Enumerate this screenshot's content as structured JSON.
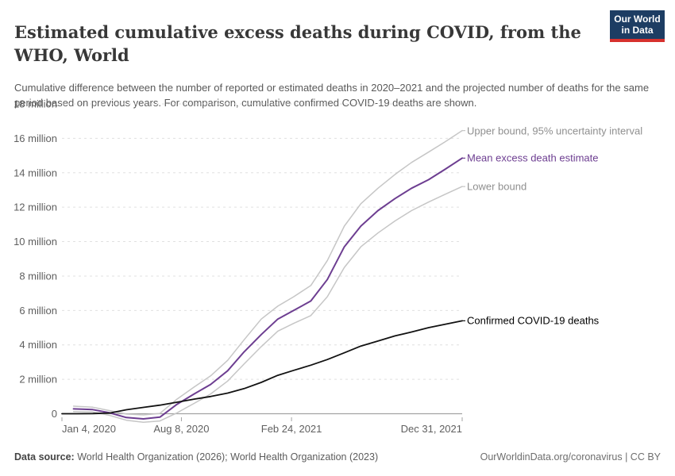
{
  "header": {
    "title": "Estimated cumulative excess deaths during COVID, from the WHO, World",
    "subtitle": "Cumulative difference between the number of reported or estimated deaths in 2020–2021 and the projected number of deaths for the same period based on previous years. For comparison, cumulative confirmed COVID-19 deaths are shown.",
    "logo": {
      "line1": "Our World",
      "line2": "in Data",
      "bg_color": "#1d3d63",
      "accent_color": "#d7312e"
    }
  },
  "footer": {
    "source_label": "Data source:",
    "source_text": " World Health Organization (2026); World Health Organization (2023)",
    "license_text": "OurWorldinData.org/coronavirus | CC BY"
  },
  "chart_data": {
    "type": "line",
    "title": "Estimated cumulative excess deaths during COVID, from the WHO, World",
    "xlabel": "",
    "ylabel": "",
    "unit": "million deaths",
    "x_domain_days": [
      0,
      727
    ],
    "x_ticks": [
      {
        "label": "Jan 4, 2020",
        "day": 0,
        "align": "start"
      },
      {
        "label": "Aug 8, 2020",
        "day": 217,
        "align": "middle"
      },
      {
        "label": "Feb 24, 2021",
        "day": 417,
        "align": "middle"
      },
      {
        "label": "Dec 31, 2021",
        "day": 727,
        "align": "end"
      }
    ],
    "y_ticks": [
      {
        "label": "0",
        "value": 0
      },
      {
        "label": "2 million",
        "value": 2
      },
      {
        "label": "4 million",
        "value": 4
      },
      {
        "label": "6 million",
        "value": 6
      },
      {
        "label": "8 million",
        "value": 8
      },
      {
        "label": "10 million",
        "value": 10
      },
      {
        "label": "12 million",
        "value": 12
      },
      {
        "label": "14 million",
        "value": 14
      },
      {
        "label": "16 million",
        "value": 16
      },
      {
        "label": "18 million",
        "value": 18
      }
    ],
    "ylim": [
      -0.7,
      18
    ],
    "grid": true,
    "colors": {
      "bound": "#c6c6c6",
      "mean": "#6d3e91",
      "confirmed": "#121212",
      "grid": "#e0e0e0",
      "axis": "#a3a3a3",
      "tick_text": "#5f5f5f"
    },
    "series": [
      {
        "name": "Upper bound, 95% uncertainty interval",
        "color": "#c6c6c6",
        "label_color": "#8f8f8f",
        "stroke_width": 1.5,
        "points": [
          [
            21,
            0.44
          ],
          [
            56,
            0.38
          ],
          [
            87,
            0.18
          ],
          [
            117,
            -0.02
          ],
          [
            148,
            -0.07
          ],
          [
            178,
            0.02
          ],
          [
            209,
            0.85
          ],
          [
            240,
            1.55
          ],
          [
            270,
            2.2
          ],
          [
            301,
            3.1
          ],
          [
            331,
            4.3
          ],
          [
            362,
            5.5
          ],
          [
            392,
            6.25
          ],
          [
            421,
            6.8
          ],
          [
            452,
            7.45
          ],
          [
            482,
            8.9
          ],
          [
            513,
            10.9
          ],
          [
            543,
            12.2
          ],
          [
            574,
            13.1
          ],
          [
            605,
            13.9
          ],
          [
            635,
            14.6
          ],
          [
            666,
            15.2
          ],
          [
            696,
            15.8
          ],
          [
            727,
            16.45
          ]
        ]
      },
      {
        "name": "Lower bound",
        "color": "#c6c6c6",
        "label_color": "#8f8f8f",
        "stroke_width": 1.5,
        "points": [
          [
            21,
            0.13
          ],
          [
            56,
            0.1
          ],
          [
            87,
            -0.1
          ],
          [
            117,
            -0.38
          ],
          [
            148,
            -0.5
          ],
          [
            178,
            -0.42
          ],
          [
            209,
            0.05
          ],
          [
            240,
            0.6
          ],
          [
            270,
            1.15
          ],
          [
            301,
            1.9
          ],
          [
            331,
            2.9
          ],
          [
            362,
            3.9
          ],
          [
            392,
            4.8
          ],
          [
            421,
            5.25
          ],
          [
            452,
            5.7
          ],
          [
            482,
            6.8
          ],
          [
            513,
            8.5
          ],
          [
            543,
            9.7
          ],
          [
            574,
            10.5
          ],
          [
            605,
            11.2
          ],
          [
            635,
            11.8
          ],
          [
            666,
            12.3
          ],
          [
            696,
            12.75
          ],
          [
            727,
            13.2
          ]
        ]
      },
      {
        "name": "Mean excess death estimate",
        "color": "#6d3e91",
        "label_color": "#6d3e91",
        "stroke_width": 2,
        "points": [
          [
            21,
            0.28
          ],
          [
            56,
            0.24
          ],
          [
            87,
            0.05
          ],
          [
            117,
            -0.22
          ],
          [
            148,
            -0.3
          ],
          [
            178,
            -0.2
          ],
          [
            209,
            0.55
          ],
          [
            240,
            1.15
          ],
          [
            270,
            1.7
          ],
          [
            301,
            2.5
          ],
          [
            331,
            3.6
          ],
          [
            362,
            4.6
          ],
          [
            392,
            5.5
          ],
          [
            421,
            6.0
          ],
          [
            452,
            6.55
          ],
          [
            482,
            7.8
          ],
          [
            513,
            9.7
          ],
          [
            543,
            10.9
          ],
          [
            574,
            11.8
          ],
          [
            605,
            12.5
          ],
          [
            635,
            13.1
          ],
          [
            666,
            13.6
          ],
          [
            696,
            14.2
          ],
          [
            727,
            14.85
          ]
        ]
      },
      {
        "name": "Confirmed COVID-19 deaths",
        "color": "#121212",
        "label_color": "#000000",
        "stroke_width": 1.8,
        "points": [
          [
            0,
            0
          ],
          [
            27,
            0
          ],
          [
            56,
            0.01
          ],
          [
            87,
            0.04
          ],
          [
            117,
            0.23
          ],
          [
            148,
            0.37
          ],
          [
            178,
            0.5
          ],
          [
            209,
            0.67
          ],
          [
            240,
            0.85
          ],
          [
            270,
            1.0
          ],
          [
            301,
            1.2
          ],
          [
            331,
            1.46
          ],
          [
            362,
            1.82
          ],
          [
            392,
            2.23
          ],
          [
            421,
            2.52
          ],
          [
            452,
            2.82
          ],
          [
            482,
            3.15
          ],
          [
            513,
            3.54
          ],
          [
            543,
            3.93
          ],
          [
            574,
            4.22
          ],
          [
            605,
            4.52
          ],
          [
            635,
            4.75
          ],
          [
            666,
            5.0
          ],
          [
            696,
            5.2
          ],
          [
            727,
            5.4
          ]
        ]
      }
    ],
    "legend_position": "right-end-labels"
  }
}
